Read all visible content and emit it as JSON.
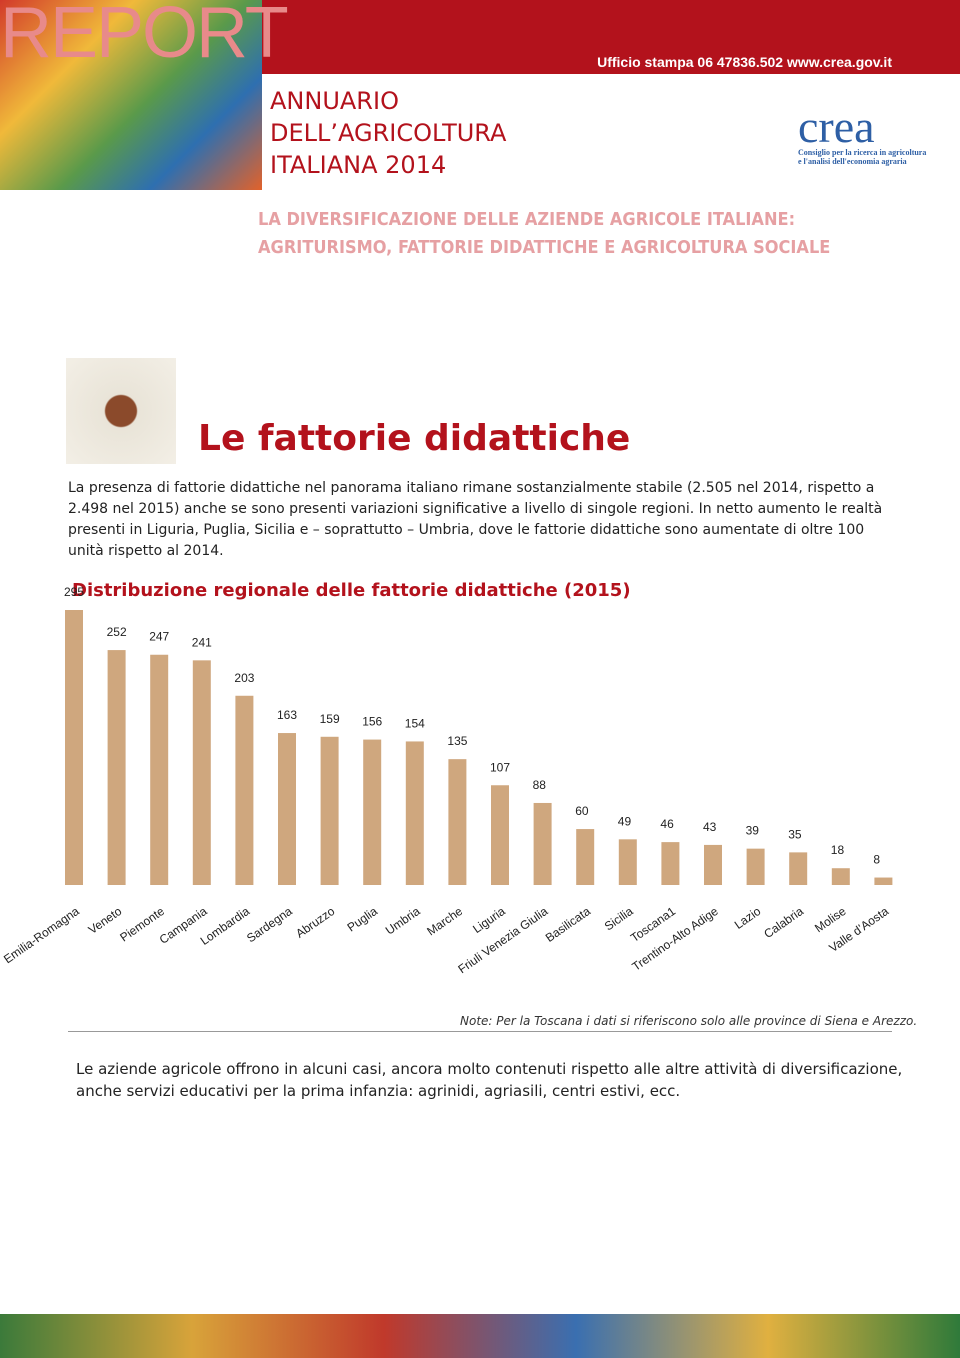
{
  "header": {
    "banner": "REPORT",
    "contact": "Ufficio stampa 06 47836.502 www.crea.gov.it",
    "title_lines": [
      "ANNUARIO",
      "DELL’AGRICOLTURA",
      "ITALIANA 2014"
    ],
    "logo": "crea",
    "logo_caption": [
      "Consiglio per la ricerca in agricoltura",
      "e l'analisi dell'economia agraria"
    ]
  },
  "subtitle_lines": [
    "LA DIVERSIFICAZIONE DELLE AZIENDE AGRICOLE ITALIANE:",
    "AGRITURISMO, FATTORIE DIDATTICHE E AGRICOLTURA SOCIALE"
  ],
  "section_title": "Le fattorie didattiche",
  "intro": "La presenza di fattorie didattiche nel panorama italiano rimane sostanzialmente stabile (2.505 nel 2014, rispetto a 2.498 nel 2015) anche se sono presenti variazioni significative a livello di singole regioni. In netto aumento le realtà presenti in Liguria, Puglia, Sicilia e – soprattutto – Umbria, dove le fattorie didattiche sono aumentate di oltre 100 unità rispetto al 2014.",
  "chart_data": {
    "type": "bar",
    "title": "Distribuzione regionale delle fattorie didattiche (2015)",
    "categories": [
      "Emilia-Romagna",
      "Veneto",
      "Piemonte",
      "Campania",
      "Lombardia",
      "Sardegna",
      "Abruzzo",
      "Puglia",
      "Umbria",
      "Marche",
      "Liguria",
      "Friuli Venezia Giulia",
      "Basilicata",
      "Sicilia",
      "Toscana1",
      "Trentino-Alto Adige",
      "Lazio",
      "Calabria",
      "Molise",
      "Valle d’Aosta"
    ],
    "values": [
      295,
      252,
      247,
      241,
      203,
      163,
      159,
      156,
      154,
      135,
      107,
      88,
      60,
      49,
      46,
      43,
      39,
      35,
      18,
      8
    ],
    "color": "#cfa77e"
  },
  "note": "Note: Per la Toscana i dati si riferiscono solo alle province di Siena e Arezzo.",
  "closing": "Le aziende agricole offrono in alcuni casi, ancora molto contenuti rispetto alle altre attività di diversificazione, anche servizi educativi per la prima infanzia: agrinidi, agriasili, centri estivi, ecc."
}
